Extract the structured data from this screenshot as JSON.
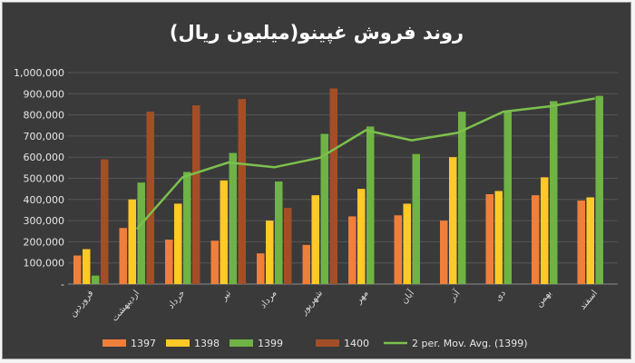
{
  "chart_data": {
    "type": "bar",
    "title": "روند فروش غپینو(میلیون ریال)",
    "categories": [
      "فروردین",
      "اردیبهشت",
      "خرداد",
      "تیر",
      "مرداد",
      "شهریور",
      "مهر",
      "آبان",
      "آذر",
      "دی",
      "بهمن",
      "اسفند"
    ],
    "series": [
      {
        "name": "1397",
        "color": "#f07f3a",
        "values": [
          135000,
          265000,
          210000,
          205000,
          145000,
          185000,
          320000,
          325000,
          300000,
          425000,
          420000,
          395000
        ]
      },
      {
        "name": "1398",
        "color": "#ffc926",
        "values": [
          165000,
          400000,
          380000,
          490000,
          300000,
          420000,
          450000,
          380000,
          600000,
          440000,
          505000,
          410000
        ]
      },
      {
        "name": "1399",
        "color": "#6fb345",
        "values": [
          40000,
          480000,
          530000,
          620000,
          485000,
          710000,
          745000,
          615000,
          815000,
          815000,
          865000,
          890000
        ]
      },
      {
        "name": "1400",
        "color": "#a34e27",
        "values": [
          590000,
          815000,
          845000,
          875000,
          360000,
          925000,
          null,
          null,
          null,
          null,
          null,
          null
        ]
      }
    ],
    "trendline": {
      "name": "2 per. Mov. Avg. (1399)",
      "color": "#7cc04c",
      "values": [
        null,
        260000,
        505000,
        575000,
        552500,
        597500,
        727500,
        680000,
        715000,
        815000,
        840000,
        877500
      ]
    },
    "ylim": [
      0,
      1000000
    ],
    "yticks": [
      "-",
      "100,000",
      "200,000",
      "300,000",
      "400,000",
      "500,000",
      "600,000",
      "700,000",
      "800,000",
      "900,000",
      "1,000,000"
    ],
    "grid": true,
    "legend": "bottom"
  }
}
